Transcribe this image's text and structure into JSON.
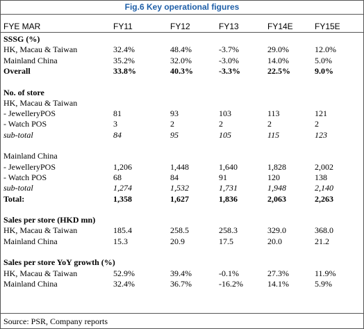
{
  "title": "Fig.6 Key operational figures",
  "table": {
    "header": {
      "label": "FYE MAR",
      "columns": [
        "FY11",
        "FY12",
        "FY13",
        "FY14E",
        "FY15E"
      ]
    },
    "sections": [
      {
        "rows": [
          {
            "label": "SSSG (%)",
            "style": "bold",
            "values": []
          },
          {
            "label": "HK, Macau & Taiwan",
            "values": [
              "32.4%",
              "48.4%",
              "-3.7%",
              "29.0%",
              "12.0%"
            ]
          },
          {
            "label": "Mainland China",
            "values": [
              "35.2%",
              "32.0%",
              "-3.0%",
              "14.0%",
              "5.0%"
            ]
          },
          {
            "label": "Overall",
            "style": "bold",
            "values": [
              "33.8%",
              "40.3%",
              "-3.3%",
              "22.5%",
              "9.0%"
            ]
          }
        ]
      },
      {
        "rows": [
          {
            "label": "No. of store",
            "style": "bold",
            "values": []
          },
          {
            "label": "HK, Macau & Taiwan",
            "values": []
          },
          {
            "label": "- JewelleryPOS",
            "values": [
              "81",
              "93",
              "103",
              "113",
              "121"
            ]
          },
          {
            "label": "- Watch POS",
            "values": [
              "3",
              "2",
              "2",
              "2",
              "2"
            ]
          },
          {
            "label": "sub-total",
            "style": "italic",
            "values": [
              "84",
              "95",
              "105",
              "115",
              "123"
            ]
          }
        ]
      },
      {
        "rows": [
          {
            "label": "Mainland China",
            "values": []
          },
          {
            "label": "- JewelleryPOS",
            "values": [
              "1,206",
              "1,448",
              "1,640",
              "1,828",
              "2,002"
            ]
          },
          {
            "label": "- Watch POS",
            "values": [
              "68",
              "84",
              "91",
              "120",
              "138"
            ]
          },
          {
            "label": "sub-total",
            "style": "italic",
            "values": [
              "1,274",
              "1,532",
              "1,731",
              "1,948",
              "2,140"
            ]
          },
          {
            "label": "Total:",
            "style": "bold",
            "values": [
              "1,358",
              "1,627",
              "1,836",
              "2,063",
              "2,263"
            ]
          }
        ]
      },
      {
        "rows": [
          {
            "label": "Sales per store (HKD mn)",
            "style": "bold",
            "values": []
          },
          {
            "label": "HK, Macau & Taiwan",
            "values": [
              "185.4",
              "258.5",
              "258.3",
              "329.0",
              "368.0"
            ]
          },
          {
            "label": "Mainland China",
            "values": [
              "15.3",
              "20.9",
              "17.5",
              "20.0",
              "21.2"
            ]
          }
        ]
      },
      {
        "rows": [
          {
            "label": "Sales per store YoY growth (%)",
            "style": "bold",
            "values": []
          },
          {
            "label": "HK, Macau & Taiwan",
            "values": [
              "52.9%",
              "39.4%",
              "-0.1%",
              "27.3%",
              "11.9%"
            ]
          },
          {
            "label": "Mainland China",
            "values": [
              "32.4%",
              "36.7%",
              "-16.2%",
              "14.1%",
              "5.9%"
            ]
          }
        ]
      }
    ]
  },
  "source": "Source: PSR, Company reports"
}
